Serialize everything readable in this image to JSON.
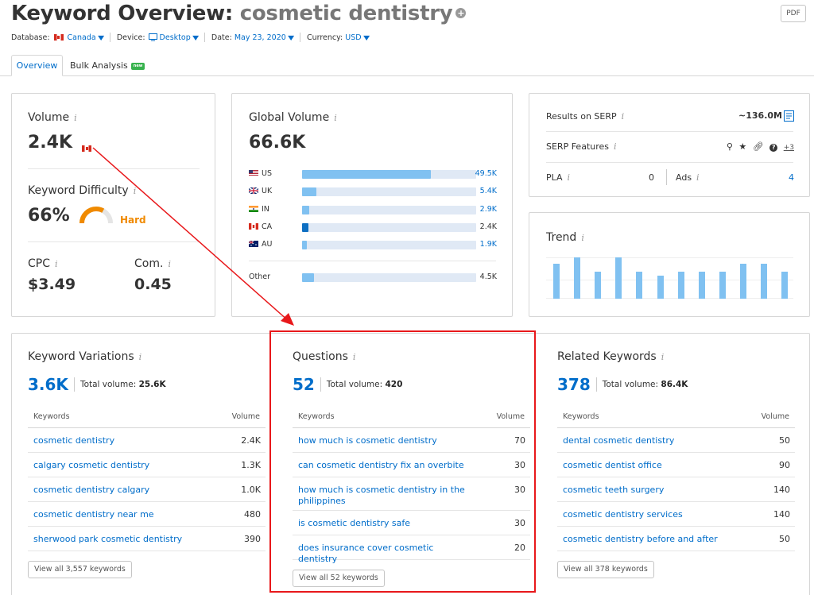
{
  "header": {
    "title_prefix": "Keyword Overview:",
    "keyword": "cosmetic dentistry",
    "pdf_label": "PDF"
  },
  "filters": {
    "database_label": "Database:",
    "database_value": "Canada",
    "device_label": "Device:",
    "device_value": "Desktop",
    "date_label": "Date:",
    "date_value": "May 23, 2020",
    "currency_label": "Currency:",
    "currency_value": "USD"
  },
  "tabs": {
    "overview": "Overview",
    "bulk": "Bulk Analysis",
    "bulk_badge": "new"
  },
  "volume_card": {
    "volume_label": "Volume",
    "volume_value": "2.4K",
    "kd_label": "Keyword Difficulty",
    "kd_value": "66%",
    "kd_level": "Hard",
    "kd_percent": 66,
    "cpc_label": "CPC",
    "cpc_value": "$3.49",
    "com_label": "Com.",
    "com_value": "0.45"
  },
  "global_volume": {
    "label": "Global Volume",
    "value": "66.6K",
    "rows": [
      {
        "country": "US",
        "value": "49.5K",
        "share": 0.74,
        "dark": false,
        "highlight": true
      },
      {
        "country": "UK",
        "value": "5.4K",
        "share": 0.08,
        "dark": false,
        "highlight": true
      },
      {
        "country": "IN",
        "value": "2.9K",
        "share": 0.04,
        "dark": false,
        "highlight": true
      },
      {
        "country": "CA",
        "value": "2.4K",
        "share": 0.035,
        "dark": true,
        "highlight": false
      },
      {
        "country": "AU",
        "value": "1.9K",
        "share": 0.028,
        "dark": false,
        "highlight": true
      }
    ],
    "other": {
      "country": "Other",
      "value": "4.5K",
      "share": 0.068
    }
  },
  "serp": {
    "results_label": "Results on SERP",
    "results_value": "~136.0M",
    "features_label": "SERP Features",
    "features_more": "+3",
    "pla_label": "PLA",
    "pla_value": "0",
    "ads_label": "Ads",
    "ads_value": "4"
  },
  "trend": {
    "label": "Trend",
    "values": [
      0.85,
      1.0,
      0.65,
      1.0,
      0.65,
      0.55,
      0.65,
      0.65,
      0.65,
      0.85,
      0.85,
      0.65
    ]
  },
  "keyword_variations": {
    "label": "Keyword Variations",
    "count": "3.6K",
    "total_label": "Total volume:",
    "total_value": "25.6K",
    "col_keywords": "Keywords",
    "col_volume": "Volume",
    "rows": [
      {
        "kw": "cosmetic dentistry",
        "vol": "2.4K"
      },
      {
        "kw": "calgary cosmetic dentistry",
        "vol": "1.3K"
      },
      {
        "kw": "cosmetic dentistry calgary",
        "vol": "1.0K"
      },
      {
        "kw": "cosmetic dentistry near me",
        "vol": "480"
      },
      {
        "kw": "sherwood park cosmetic dentistry",
        "vol": "390"
      }
    ],
    "view_all": "View all 3,557 keywords"
  },
  "questions": {
    "label": "Questions",
    "count": "52",
    "total_label": "Total volume:",
    "total_value": "420",
    "col_keywords": "Keywords",
    "col_volume": "Volume",
    "rows": [
      {
        "kw": "how much is cosmetic dentistry",
        "vol": "70"
      },
      {
        "kw": "can cosmetic dentistry fix an overbite",
        "vol": "30"
      },
      {
        "kw": "how much is cosmetic dentistry in the philippines",
        "vol": "30"
      },
      {
        "kw": "is cosmetic dentistry safe",
        "vol": "30"
      },
      {
        "kw": "does insurance cover cosmetic dentistry",
        "vol": "20"
      }
    ],
    "view_all": "View all 52 keywords"
  },
  "related": {
    "label": "Related Keywords",
    "count": "378",
    "total_label": "Total volume:",
    "total_value": "86.4K",
    "col_keywords": "Keywords",
    "col_volume": "Volume",
    "rows": [
      {
        "kw": "dental cosmetic dentistry",
        "vol": "50"
      },
      {
        "kw": "cosmetic dentist office",
        "vol": "90"
      },
      {
        "kw": "cosmetic teeth surgery",
        "vol": "140"
      },
      {
        "kw": "cosmetic dentistry services",
        "vol": "140"
      },
      {
        "kw": "cosmetic dentistry before and after",
        "vol": "50"
      }
    ],
    "view_all": "View all 378 keywords"
  },
  "colors": {
    "accent": "#006dca",
    "bar_light": "#80c1f1",
    "bar_bg": "#e0e9f5",
    "hard": "#f08a00",
    "annotation": "#e8181b"
  }
}
